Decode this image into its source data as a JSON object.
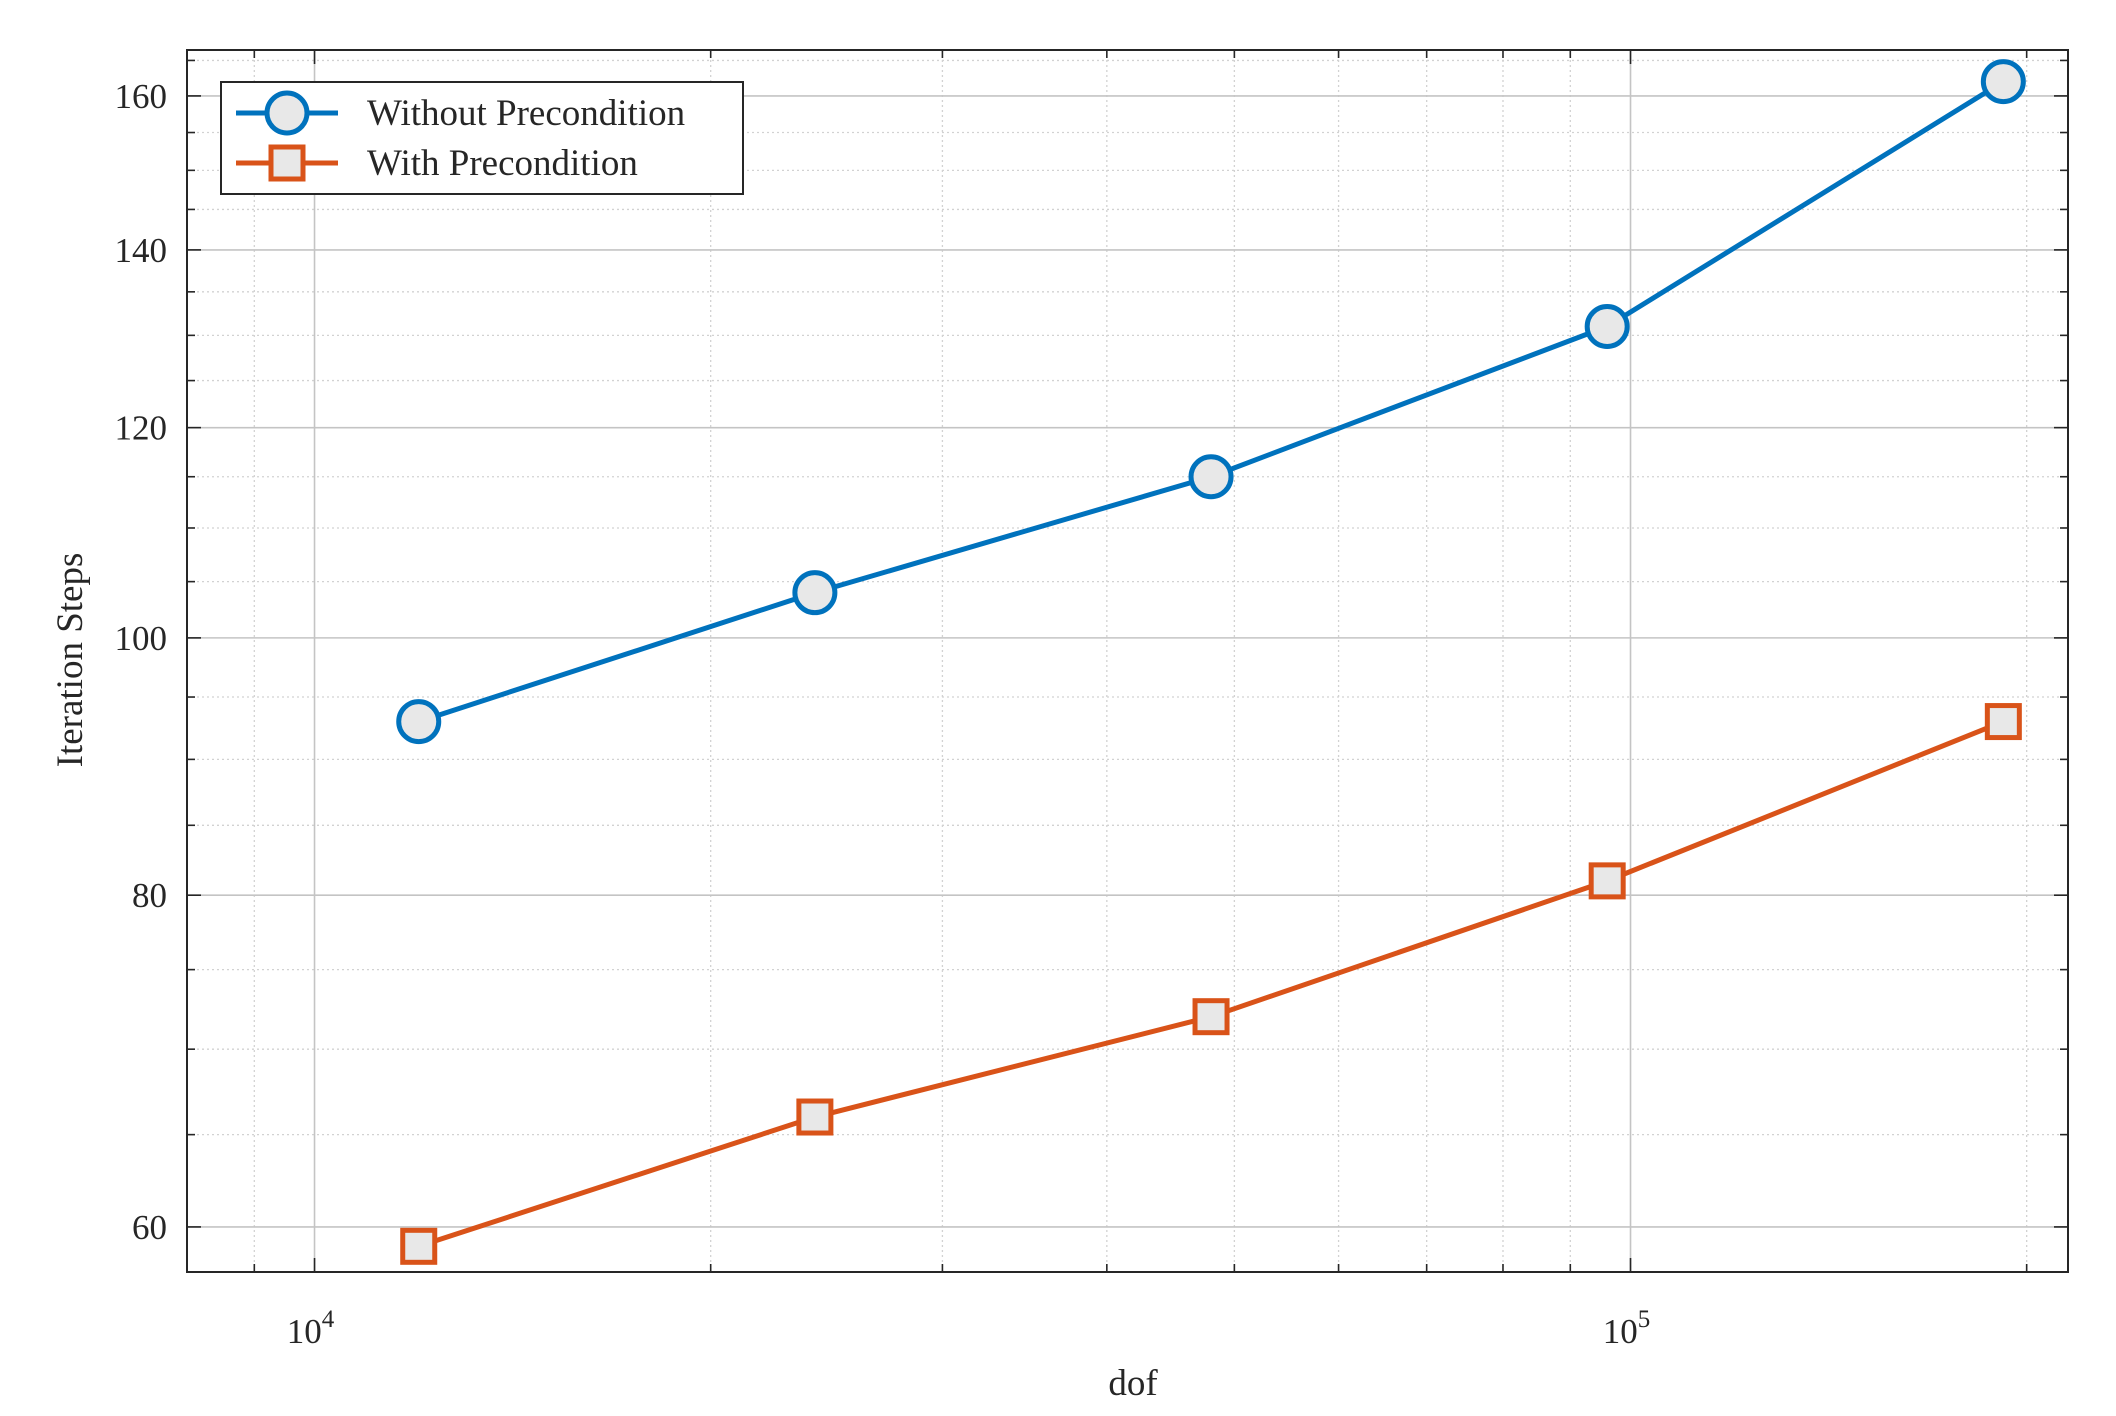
{
  "chart_data": {
    "type": "line",
    "xscale": "log",
    "yscale": "log",
    "xlim": [
      8000,
      215000
    ],
    "ylim": [
      57.7,
      166.5
    ],
    "xlabel": "dof",
    "ylabel": "Iteration Steps",
    "x_ticks": [
      {
        "value": 10000,
        "base": "10",
        "exp": "4"
      },
      {
        "value": 100000,
        "base": "10",
        "exp": "5"
      }
    ],
    "y_ticks": [
      {
        "value": 60,
        "label": "60"
      },
      {
        "value": 80,
        "label": "80"
      },
      {
        "value": 100,
        "label": "100"
      },
      {
        "value": 120,
        "label": "120"
      },
      {
        "value": 140,
        "label": "140"
      },
      {
        "value": 160,
        "label": "160"
      }
    ],
    "grid": true,
    "minor_grid": true,
    "legend_position": "top-left",
    "series": [
      {
        "name": "Without Precondition",
        "color": "#0072bd",
        "marker": "circle",
        "x": [
          12000,
          24000,
          48000,
          96000,
          192000
        ],
        "y": [
          93,
          104,
          115,
          131,
          162
        ]
      },
      {
        "name": "With Precondition",
        "color": "#d95319",
        "marker": "square",
        "x": [
          12000,
          24000,
          48000,
          96000,
          192000
        ],
        "y": [
          59,
          66,
          72,
          81,
          93
        ]
      }
    ]
  }
}
